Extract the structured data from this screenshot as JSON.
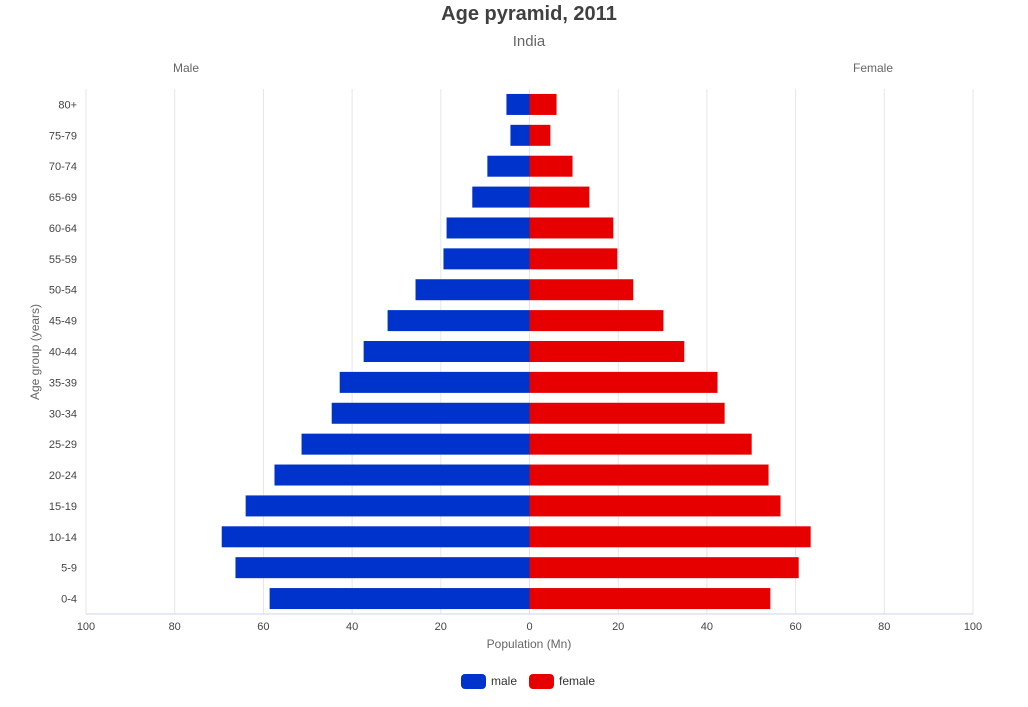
{
  "chart_data": {
    "type": "bar",
    "orientation": "horizontal-pyramid",
    "title": "Age pyramid, 2011",
    "subtitle": "India",
    "left_label": "Male",
    "right_label": "Female",
    "xlabel": "Population (Mn)",
    "ylabel": "Age group (years)",
    "xlim": [
      -100,
      100
    ],
    "xticks": [
      -100,
      -80,
      -60,
      -40,
      -20,
      0,
      20,
      40,
      60,
      80,
      100
    ],
    "xtick_labels": [
      "100",
      "80",
      "60",
      "40",
      "20",
      "0",
      "20",
      "40",
      "60",
      "80",
      "100"
    ],
    "grid": true,
    "legend_position": "bottom",
    "categories": [
      "80+",
      "75-79",
      "70-74",
      "65-69",
      "60-64",
      "55-59",
      "50-54",
      "45-49",
      "40-44",
      "35-39",
      "30-34",
      "25-29",
      "20-24",
      "15-19",
      "10-14",
      "5-9",
      "0-4"
    ],
    "series": [
      {
        "name": "male",
        "color": "#0033cc",
        "values": [
          5.2,
          4.3,
          9.5,
          12.9,
          18.7,
          19.4,
          25.7,
          32.0,
          37.4,
          42.8,
          44.6,
          51.4,
          57.5,
          64.0,
          69.4,
          66.3,
          58.6
        ]
      },
      {
        "name": "female",
        "color": "#e60000",
        "values": [
          6.1,
          4.7,
          9.7,
          13.5,
          18.9,
          19.8,
          23.4,
          30.2,
          34.9,
          42.4,
          44.0,
          50.1,
          53.9,
          56.6,
          63.4,
          60.7,
          54.3
        ]
      }
    ]
  }
}
